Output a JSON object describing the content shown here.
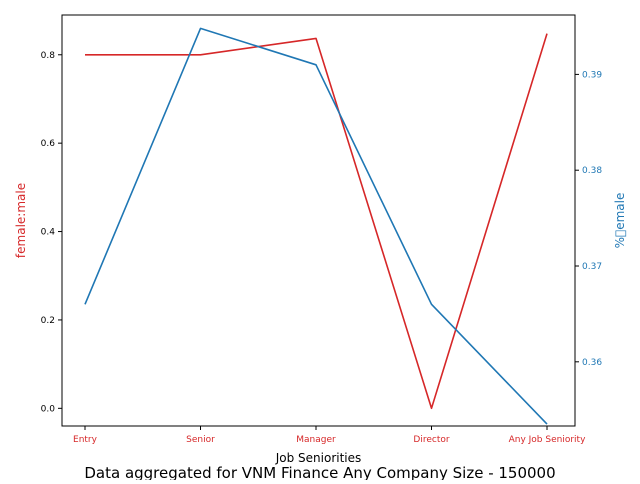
{
  "chart_data": {
    "type": "line",
    "categories": [
      "Entry",
      "Senior",
      "Manager",
      "Director",
      "Any Job Seniority"
    ],
    "xlabel": "Job Seniorities",
    "caption": "Data aggregated for VNM Finance Any Company Size - 150000",
    "left_axis": {
      "label": "female:male",
      "color": "#d62728",
      "ylim": [
        -0.04,
        0.89
      ],
      "ticks": [
        "0.0",
        "0.2",
        "0.4",
        "0.6",
        "0.8"
      ],
      "tick_values": [
        0.0,
        0.2,
        0.4,
        0.6,
        0.8
      ]
    },
    "right_axis": {
      "label": "%\u0000emale",
      "color": "#1f77b4",
      "ylim": [
        0.3533,
        0.3962
      ],
      "ticks": [
        "0.36",
        "0.37",
        "0.38",
        "0.39"
      ],
      "tick_values": [
        0.36,
        0.37,
        0.38,
        0.39
      ]
    },
    "series": [
      {
        "axis": "left",
        "color": "#d62728",
        "values": [
          0.8,
          0.8,
          0.837,
          0.0,
          0.848
        ]
      },
      {
        "axis": "right",
        "color": "#1f77b4",
        "values": [
          0.366,
          0.3948,
          0.391,
          0.366,
          0.3535
        ]
      }
    ],
    "grid": false,
    "legend": "none"
  }
}
